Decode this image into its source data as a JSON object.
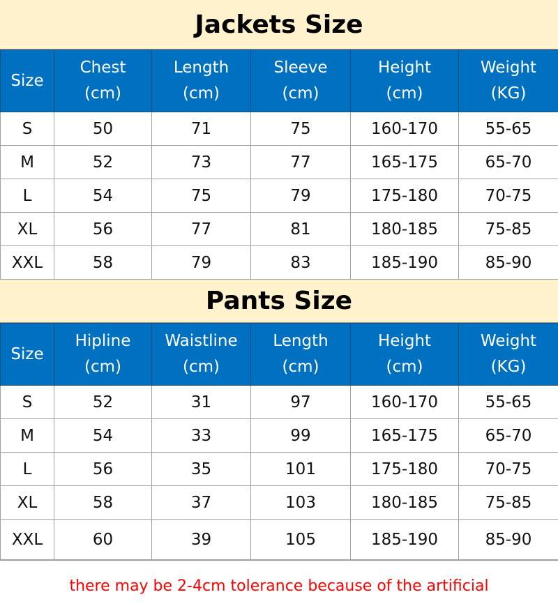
{
  "jackets": {
    "title": "Jackets Size",
    "headers": [
      [
        "Size",
        ""
      ],
      [
        "Chest",
        "(cm)"
      ],
      [
        "Length",
        "(cm)"
      ],
      [
        "Sleeve",
        "(cm)"
      ],
      [
        "Height",
        "(cm)"
      ],
      [
        "Weight",
        "(KG)"
      ]
    ],
    "rows": [
      [
        "S",
        "50",
        "71",
        "75",
        "160-170",
        "55-65"
      ],
      [
        "M",
        "52",
        "73",
        "77",
        "165-175",
        "65-70"
      ],
      [
        "L",
        "54",
        "75",
        "79",
        "175-180",
        "70-75"
      ],
      [
        "XL",
        "56",
        "77",
        "81",
        "180-185",
        "75-85"
      ],
      [
        "XXL",
        "58",
        "79",
        "83",
        "185-190",
        "85-90"
      ]
    ]
  },
  "pants": {
    "title": "Pants Size",
    "headers": [
      [
        "Size",
        ""
      ],
      [
        "Hipline",
        "(cm)"
      ],
      [
        "Waistline",
        "(cm)"
      ],
      [
        "Length",
        "(cm)"
      ],
      [
        "Height",
        "(cm)"
      ],
      [
        "Weight",
        "(KG)"
      ]
    ],
    "rows": [
      [
        "S",
        "52",
        "31",
        "97",
        "160-170",
        "55-65"
      ],
      [
        "M",
        "54",
        "33",
        "99",
        "165-175",
        "65-70"
      ],
      [
        "L",
        "56",
        "35",
        "101",
        "175-180",
        "70-75"
      ],
      [
        "XL",
        "58",
        "37",
        "103",
        "180-185",
        "75-85"
      ],
      [
        "XXL",
        "60",
        "39",
        "105",
        "185-190",
        "85-90"
      ]
    ]
  },
  "footer_note": "there may be 2-4cm tolerance because of the artificial",
  "colors": {
    "title_bg": "#fff2cc",
    "header_bg": "#0070c0",
    "note": "#ff0000"
  }
}
